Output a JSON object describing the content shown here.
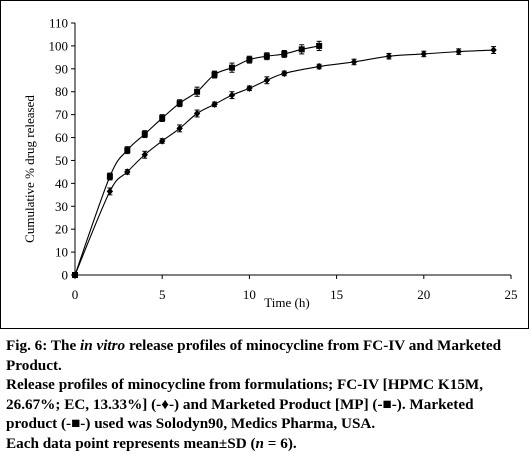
{
  "chart_data": {
    "type": "line",
    "title": "",
    "xlabel": "Time (h)",
    "ylabel": "Cumulative % drug released",
    "xlim": [
      0,
      25
    ],
    "ylim": [
      0,
      110
    ],
    "xticks": [
      0,
      5,
      10,
      15,
      20,
      25
    ],
    "yticks": [
      0,
      10,
      20,
      30,
      40,
      50,
      60,
      70,
      80,
      90,
      100,
      110
    ],
    "grid": false,
    "series": [
      {
        "marker": "diamond",
        "x": [
          0,
          2,
          3,
          4,
          5,
          6,
          7,
          8,
          9,
          10,
          11,
          12,
          14,
          16,
          18,
          20,
          22,
          24
        ],
        "y": [
          0,
          36.5,
          45,
          52.5,
          58.5,
          64,
          70.5,
          74.5,
          78.5,
          81.5,
          85,
          88,
          91,
          93,
          95.5,
          96.5,
          97.5,
          98.2
        ],
        "err": [
          0,
          1.5,
          1,
          1.5,
          1,
          1.5,
          1.5,
          1,
          1.5,
          1,
          1.5,
          1,
          1,
          1.2,
          1.2,
          1.2,
          1.2,
          1.5
        ]
      },
      {
        "marker": "square",
        "x": [
          0,
          2,
          3,
          4,
          5,
          6,
          7,
          8,
          9,
          10,
          11,
          12,
          13,
          14
        ],
        "y": [
          0,
          43,
          54.5,
          61.5,
          68.5,
          75,
          80,
          87.5,
          90.5,
          94,
          95.5,
          96.5,
          98.5,
          100
        ],
        "err": [
          0,
          1.5,
          1.5,
          1.5,
          1.5,
          1.5,
          2,
          1.5,
          2,
          1.5,
          1.5,
          1.5,
          2,
          2
        ]
      }
    ]
  },
  "caption": {
    "fig_label": "Fig. 6:",
    "fig_title_pre": " The ",
    "fig_title_italic": "in vitro",
    "fig_title_post": " release profiles of minocycline from FC-IV and Marketed Product.",
    "body_1": "Release profiles of minocycline from formulations; FC-IV [HPMC K15M, 26.67%; EC, 13.33%] (-♦-) and Marketed Product [MP] (-■-). Marketed product (-■-) used was Solodyn90, Medics Pharma, USA.",
    "body_2_pre": "Each data point represents mean±SD (",
    "body_2_italic": "n",
    "body_2_post": " = 6)."
  }
}
